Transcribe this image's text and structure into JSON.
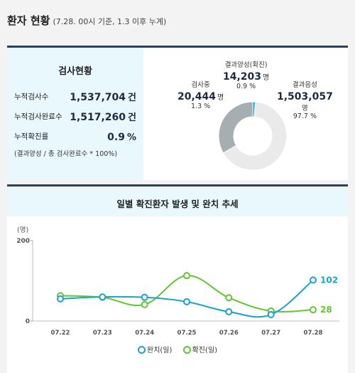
{
  "header": {
    "title": "환자 현황",
    "subtitle": "(7.28. 00시 기준, 1.3 이후 누계)"
  },
  "tests": {
    "title": "검사현황",
    "rows": [
      {
        "label": "누적검사수",
        "value": "1,537,704",
        "unit": "건"
      },
      {
        "label": "누적검사완료수",
        "value": "1,517,260",
        "unit": "건"
      },
      {
        "label": "누적확진률",
        "value": "0.9",
        "unit": "%"
      }
    ],
    "note": "(결과양성 / 총 검사완료수 * 100%)"
  },
  "donut": {
    "in_progress": {
      "label": "검사중",
      "count": "20,444",
      "unit": "명",
      "pct": "1.3 %"
    },
    "positive": {
      "label": "결과양성(확진)",
      "count": "14,203",
      "unit": "명",
      "pct": "0.9 %"
    },
    "negative": {
      "label": "결과음성",
      "count": "1,503,057",
      "unit": "명",
      "pct": "97.7 %"
    },
    "colors": {
      "in_progress": "#a6aeb2",
      "positive": "#19a7d8",
      "negative": "#eaeaea"
    },
    "fractions": {
      "positive": 0.009,
      "negative": 0.977,
      "in_progress": 0.013
    }
  },
  "chart_data": {
    "type": "line",
    "title": "일별 확진환자 발생 및 완치 추세",
    "ylabel": "(명)",
    "ylim": [
      0,
      200
    ],
    "ytick_labels": [
      "0",
      "200"
    ],
    "categories": [
      "07.22",
      "07.23",
      "07.24",
      "07.25",
      "07.26",
      "07.27",
      "07.28"
    ],
    "series": [
      {
        "name": "완치(일)",
        "color": "#1aa3cc",
        "values": [
          55,
          60,
          59,
          48,
          23,
          16,
          102
        ],
        "end_label": "102"
      },
      {
        "name": "확진(일)",
        "color": "#62c633",
        "values": [
          63,
          59,
          41,
          113,
          58,
          25,
          28
        ],
        "end_label": "28"
      }
    ],
    "legend_position": "bottom"
  }
}
